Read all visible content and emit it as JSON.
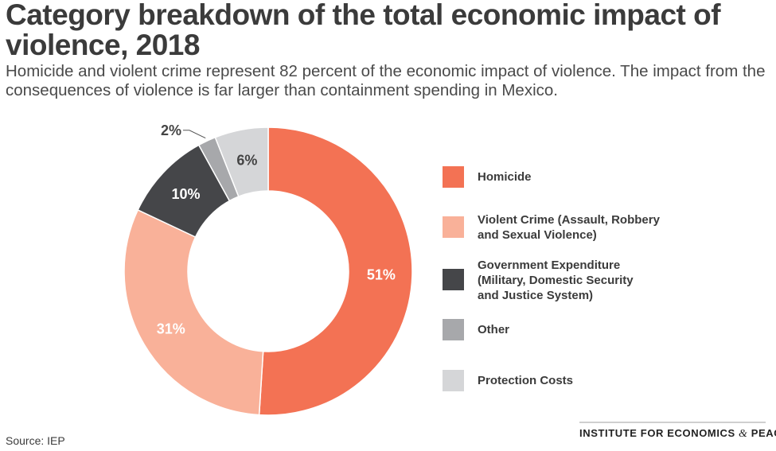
{
  "header": {
    "title": "Category breakdown of the total economic impact of violence, 2018",
    "subtitle": "Homicide and violent crime represent 82 percent of the economic impact of violence. The impact from the consequences of violence is far larger than containment spending in Mexico."
  },
  "chart_data": {
    "type": "pie",
    "style": "donut",
    "title": "Category breakdown of the total economic impact of violence, 2018",
    "legend_position": "right",
    "slices": [
      {
        "name": "Homicide",
        "value": 51,
        "label": "51%",
        "color": "#f37254",
        "label_color": "#ffffff"
      },
      {
        "name": "Violent Crime (Assault, Robbery and Sexual Violence)",
        "value": 31,
        "label": "31%",
        "color": "#f9b199",
        "label_color": "#ffffff"
      },
      {
        "name": "Government Expenditure (Military, Domestic Security and Justice System)",
        "value": 10,
        "label": "10%",
        "color": "#454649",
        "label_color": "#ffffff"
      },
      {
        "name": "Other",
        "value": 2,
        "label": "2%",
        "color": "#a7a8ab",
        "label_color": "#444444"
      },
      {
        "name": "Protection Costs",
        "value": 6,
        "label": "6%",
        "color": "#d5d6d8",
        "label_color": "#444444"
      }
    ]
  },
  "legend": {
    "items": [
      {
        "lines": [
          "Homicide"
        ],
        "color": "#f37254"
      },
      {
        "lines": [
          "Violent Crime (Assault, Robbery",
          "and Sexual Violence)"
        ],
        "color": "#f9b199"
      },
      {
        "lines": [
          "Government Expenditure",
          "(Military, Domestic Security",
          "and Justice System)"
        ],
        "color": "#454649"
      },
      {
        "lines": [
          "Other"
        ],
        "color": "#a7a8ab"
      },
      {
        "lines": [
          "Protection Costs"
        ],
        "color": "#d5d6d8"
      }
    ]
  },
  "footer": {
    "source": "Source: IEP",
    "org_main": "INSTITUTE FOR ECONOMICS",
    "org_amp": "&",
    "org_end": "PEACE"
  }
}
